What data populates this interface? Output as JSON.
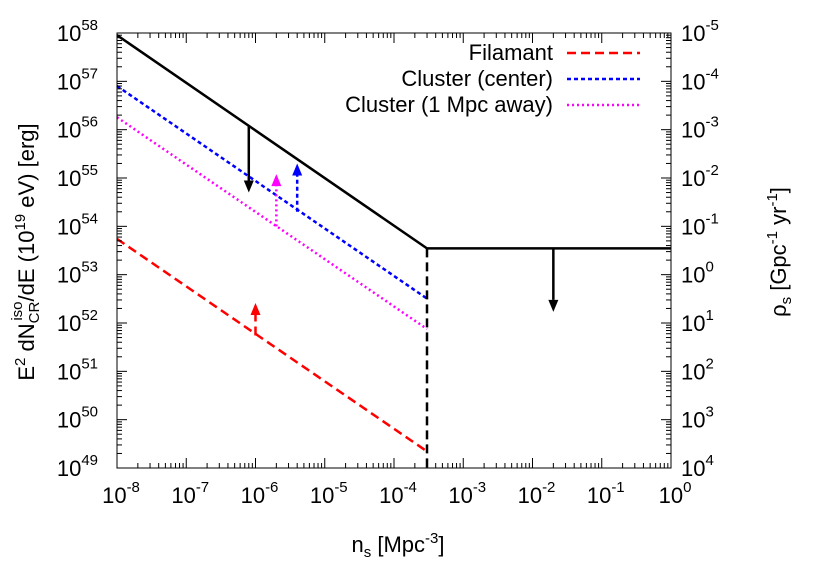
{
  "chart_data": {
    "type": "line",
    "x_scale": "log",
    "y_scale": "log",
    "xlim": [
      1e-08,
      1
    ],
    "ylim": [
      1e+49,
      1e+58
    ],
    "y2lim": [
      10000.0,
      1e-05
    ],
    "x_ticks": [
      {
        "value": 1e-08,
        "base": "10",
        "exp": "-8"
      },
      {
        "value": 1e-07,
        "base": "10",
        "exp": "-7"
      },
      {
        "value": 1e-06,
        "base": "10",
        "exp": "-6"
      },
      {
        "value": 1e-05,
        "base": "10",
        "exp": "-5"
      },
      {
        "value": 0.0001,
        "base": "10",
        "exp": "-4"
      },
      {
        "value": 0.001,
        "base": "10",
        "exp": "-3"
      },
      {
        "value": 0.01,
        "base": "10",
        "exp": "-2"
      },
      {
        "value": 0.1,
        "base": "10",
        "exp": "-1"
      },
      {
        "value": 1,
        "base": "10",
        "exp": "0"
      }
    ],
    "y_ticks": [
      {
        "value": 1e+49,
        "base": "10",
        "exp": "49"
      },
      {
        "value": 1e+50,
        "base": "10",
        "exp": "50"
      },
      {
        "value": 1e+51,
        "base": "10",
        "exp": "51"
      },
      {
        "value": 1e+52,
        "base": "10",
        "exp": "52"
      },
      {
        "value": 1e+53,
        "base": "10",
        "exp": "53"
      },
      {
        "value": 1e+54,
        "base": "10",
        "exp": "54"
      },
      {
        "value": 1e+55,
        "base": "10",
        "exp": "55"
      },
      {
        "value": 1e+56,
        "base": "10",
        "exp": "56"
      },
      {
        "value": 1e+57,
        "base": "10",
        "exp": "57"
      },
      {
        "value": 1e+58,
        "base": "10",
        "exp": "58"
      }
    ],
    "y2_ticks": [
      {
        "value": 10000.0,
        "base": "10",
        "exp": "4"
      },
      {
        "value": 1000.0,
        "base": "10",
        "exp": "3"
      },
      {
        "value": 100.0,
        "base": "10",
        "exp": "2"
      },
      {
        "value": 10.0,
        "base": "10",
        "exp": "1"
      },
      {
        "value": 1.0,
        "base": "10",
        "exp": "0"
      },
      {
        "value": 0.1,
        "base": "10",
        "exp": "-1"
      },
      {
        "value": 0.01,
        "base": "10",
        "exp": "-2"
      },
      {
        "value": 0.001,
        "base": "10",
        "exp": "-3"
      },
      {
        "value": 0.0001,
        "base": "10",
        "exp": "-4"
      },
      {
        "value": 1e-05,
        "base": "10",
        "exp": "-5"
      }
    ],
    "xlabel": {
      "main": "n",
      "sub": "s",
      "rest": " [Mpc",
      "sup": "-3",
      "end": "]"
    },
    "ylabel": {
      "p1": "E",
      "p1sup": "2",
      "p2": " dN",
      "p2sub": "CR",
      "p2sup": "iso",
      "p3": "/dE (10",
      "p3sup": "19",
      "p4": " eV) [erg]"
    },
    "y2label": {
      "p1": "ρ",
      "p1sub": "s",
      "p2": " [Gpc",
      "p2sup": "-1",
      "p3": " yr",
      "p3sup": "-1",
      "p4": "]"
    },
    "legend_position": "top-right",
    "series": [
      {
        "name": "Filamant",
        "color": "#ff0000",
        "dash": "dashed",
        "in_legend": true,
        "points": [
          [
            1e-08,
            5.5e+53
          ],
          [
            0.0003,
            2.2e+49
          ]
        ]
      },
      {
        "name": "Cluster (center)",
        "color": "#0000ff",
        "dash": "dotted-dense",
        "in_legend": true,
        "points": [
          [
            1e-08,
            8e+56
          ],
          [
            0.0003,
            3.2e+52
          ]
        ]
      },
      {
        "name": "Cluster (1 Mpc away)",
        "color": "#ff00ff",
        "dash": "dotted",
        "in_legend": true,
        "points": [
          [
            1e-08,
            1.8e+56
          ],
          [
            0.0003,
            7.5e+51
          ]
        ]
      },
      {
        "name": "",
        "color": "#000000",
        "dash": "solid",
        "in_legend": false,
        "points": [
          [
            1e-08,
            9e+57
          ],
          [
            0.0003,
            3.5e+53
          ],
          [
            1,
            3.5e+53
          ]
        ]
      },
      {
        "name": "",
        "color": "#000000",
        "dash": "dashed",
        "in_legend": false,
        "points": [
          [
            0.0003,
            3.5e+53
          ],
          [
            0.0003,
            1e+49
          ]
        ]
      }
    ],
    "arrows": [
      {
        "color": "#000000",
        "dash": "solid",
        "x": 8e-07,
        "y_from": 1.2e+56,
        "y_to": 5e+54
      },
      {
        "color": "#000000",
        "dash": "solid",
        "x": 0.02,
        "y_from": 3.5e+53,
        "y_to": 1.7e+52
      },
      {
        "color": "#0000ff",
        "dash": "dotted-dense",
        "x": 4e-06,
        "y_from": 2e+54,
        "y_to": 2e+55
      },
      {
        "color": "#ff00ff",
        "dash": "dotted",
        "x": 2e-06,
        "y_from": 1e+54,
        "y_to": 1.2e+55
      },
      {
        "color": "#ff0000",
        "dash": "dashed",
        "x": 1e-06,
        "y_from": 5.5e+51,
        "y_to": 2.6e+52
      }
    ]
  }
}
